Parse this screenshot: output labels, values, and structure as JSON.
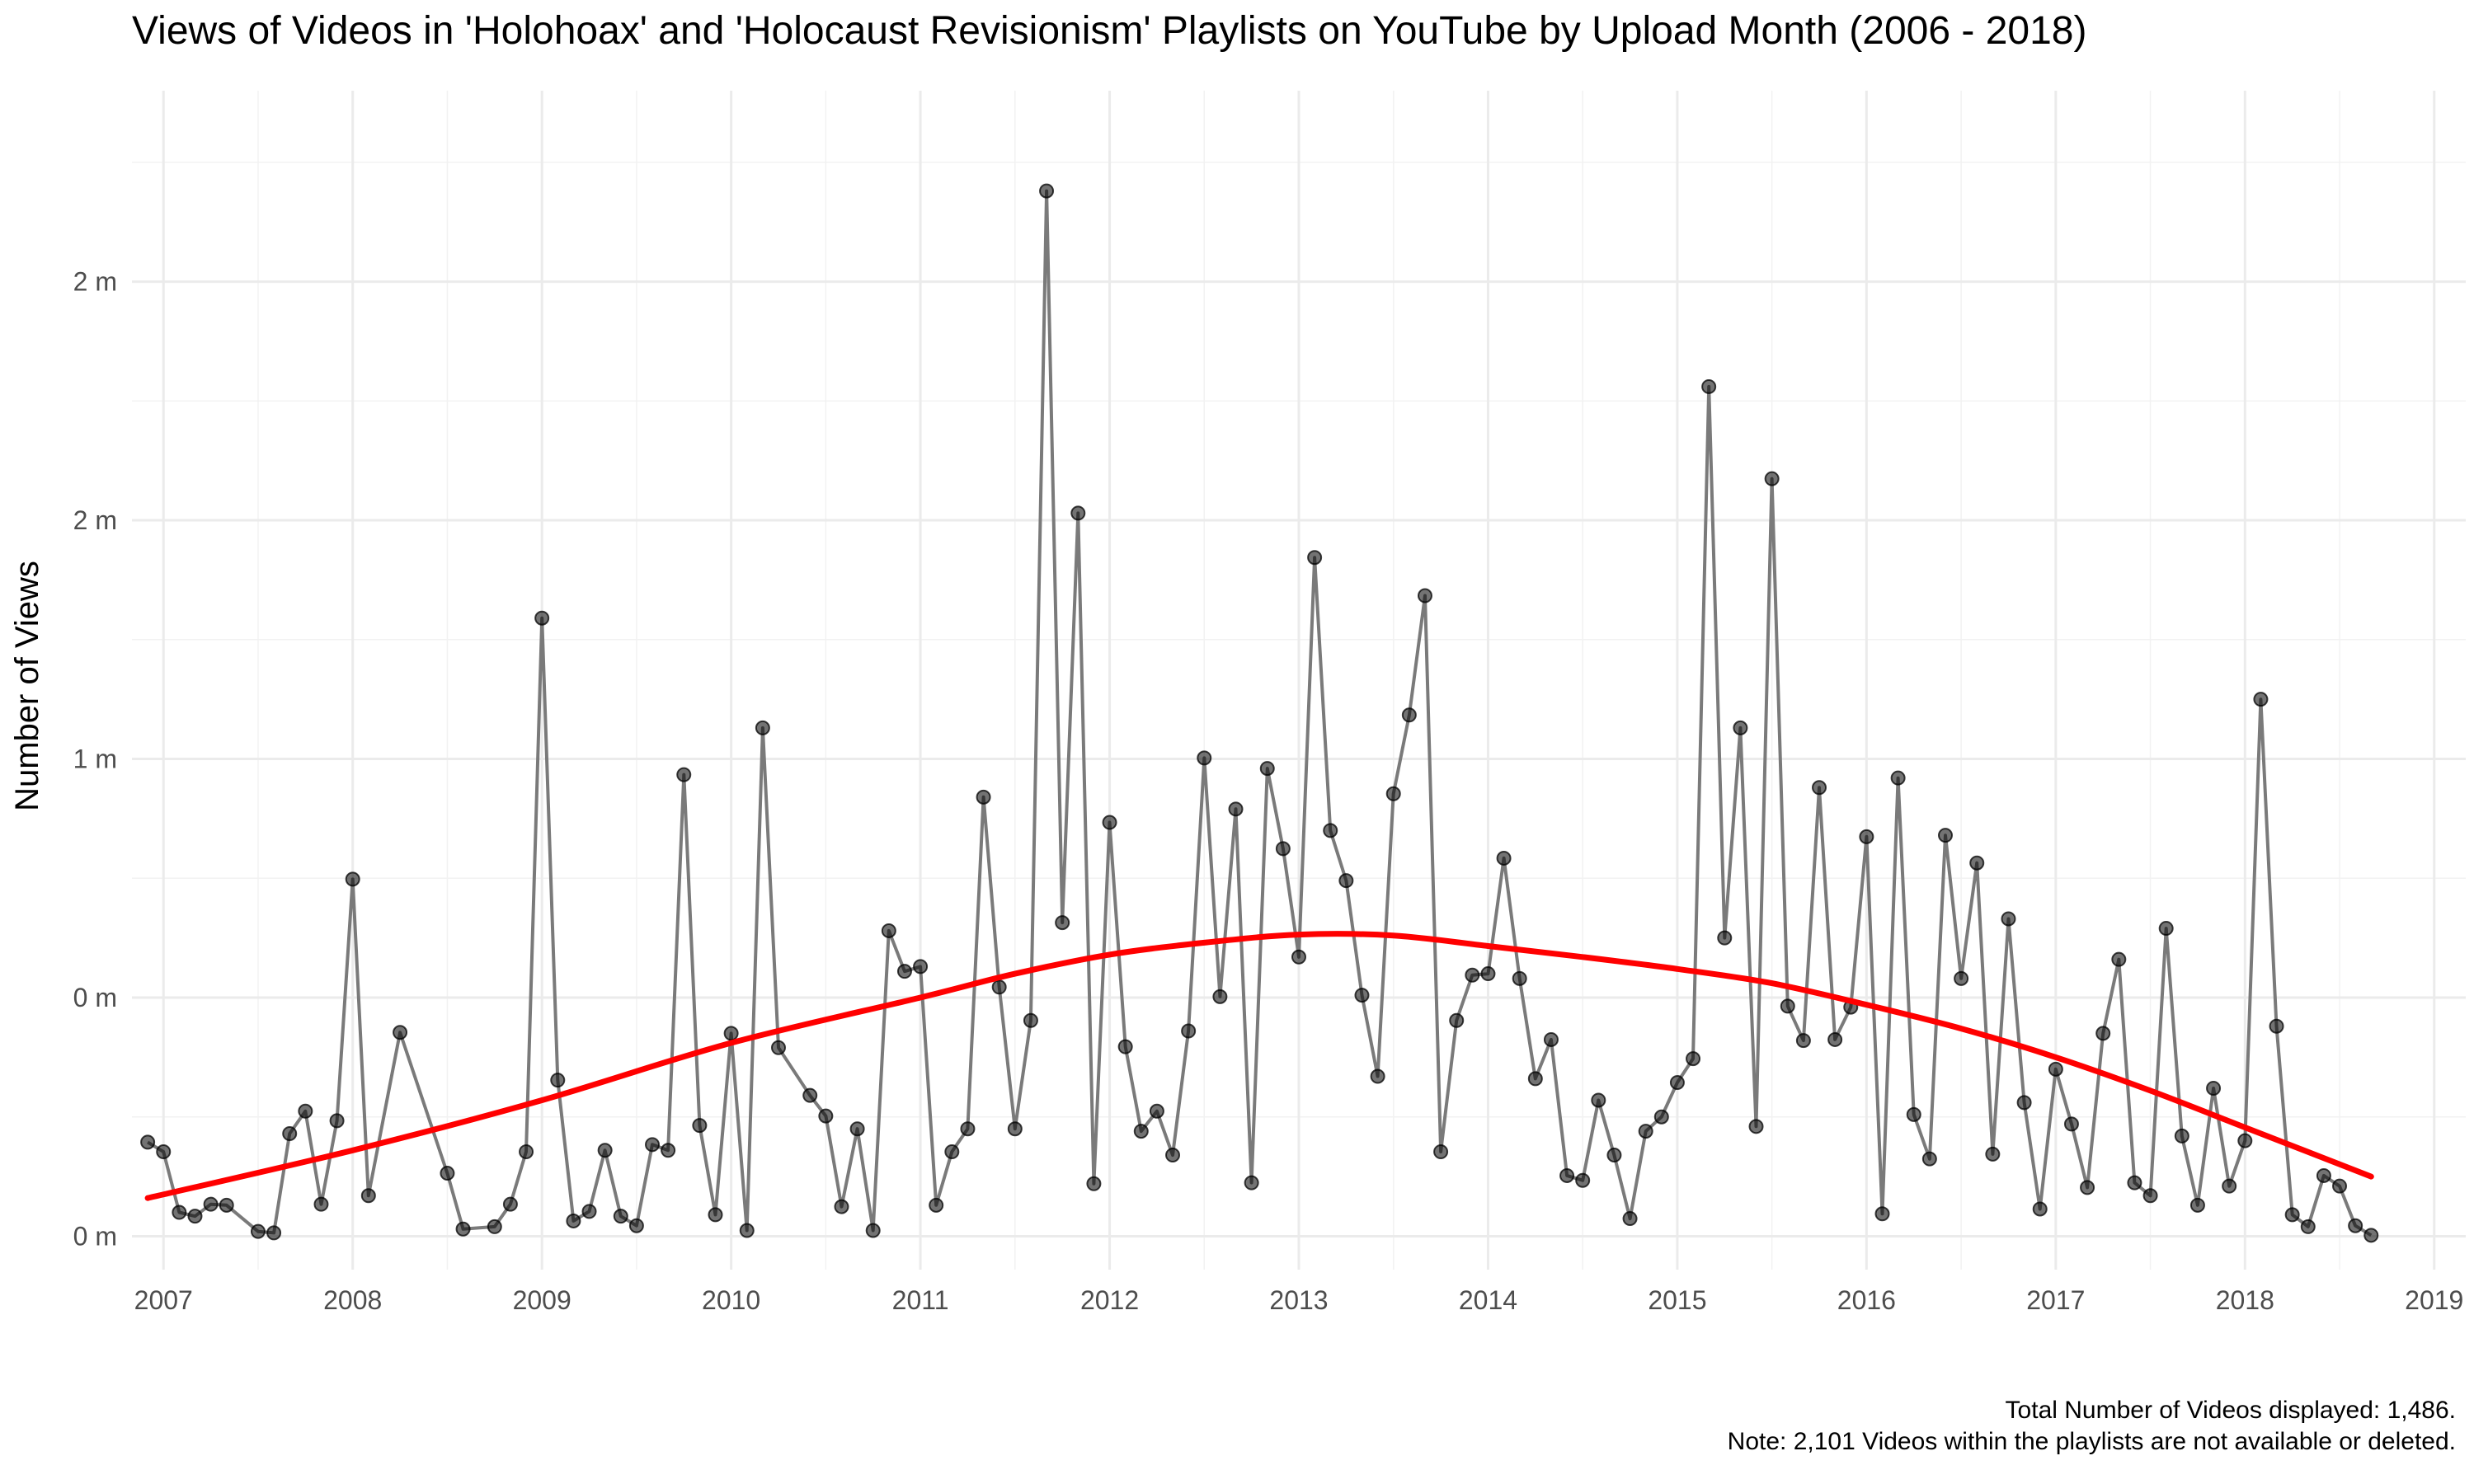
{
  "chart_data": {
    "type": "line",
    "title": "Views of Videos in 'Holohoax' and 'Holocaust Revisionism' Playlists on YouTube by Upload Month (2006 - 2018)",
    "xlabel": "",
    "ylabel": "Number of Views",
    "x_tick_labels": [
      "2007",
      "2008",
      "2009",
      "2010",
      "2011",
      "2012",
      "2013",
      "2014",
      "2015",
      "2016",
      "2017",
      "2018",
      "2019"
    ],
    "y_tick_labels": [
      "0 m",
      "0 m",
      "1 m",
      "2 m",
      "2 m"
    ],
    "y_tick_values": [
      0,
      500000,
      1000000,
      1500000,
      2000000
    ],
    "xlim": [
      "2006-11-01",
      "2019-03-01"
    ],
    "ylim": [
      -70000,
      2400000
    ],
    "grid": true,
    "legend": "none",
    "series": [
      {
        "style": "points-and-line",
        "color": "#000000",
        "line_color": "#7a7a7a",
        "points": [
          {
            "x": "2006-12",
            "y": 197000
          },
          {
            "x": "2007-01",
            "y": 177000
          },
          {
            "x": "2007-02",
            "y": 50000
          },
          {
            "x": "2007-03",
            "y": 42000
          },
          {
            "x": "2007-04",
            "y": 67000
          },
          {
            "x": "2007-05",
            "y": 65000
          },
          {
            "x": "2007-07",
            "y": 10000
          },
          {
            "x": "2007-08",
            "y": 7000
          },
          {
            "x": "2007-09",
            "y": 215000
          },
          {
            "x": "2007-10",
            "y": 262000
          },
          {
            "x": "2007-11",
            "y": 67000
          },
          {
            "x": "2007-12",
            "y": 242000
          },
          {
            "x": "2008-01",
            "y": 748000
          },
          {
            "x": "2008-02",
            "y": 85000
          },
          {
            "x": "2008-04",
            "y": 427000
          },
          {
            "x": "2008-07",
            "y": 132000
          },
          {
            "x": "2008-08",
            "y": 15000
          },
          {
            "x": "2008-10",
            "y": 20000
          },
          {
            "x": "2008-11",
            "y": 67000
          },
          {
            "x": "2008-12",
            "y": 177000
          },
          {
            "x": "2009-01",
            "y": 1295000
          },
          {
            "x": "2009-02",
            "y": 327000
          },
          {
            "x": "2009-03",
            "y": 32000
          },
          {
            "x": "2009-04",
            "y": 52000
          },
          {
            "x": "2009-05",
            "y": 180000
          },
          {
            "x": "2009-06",
            "y": 42000
          },
          {
            "x": "2009-07",
            "y": 22000
          },
          {
            "x": "2009-08",
            "y": 192000
          },
          {
            "x": "2009-09",
            "y": 180000
          },
          {
            "x": "2009-10",
            "y": 967000
          },
          {
            "x": "2009-11",
            "y": 232000
          },
          {
            "x": "2009-12",
            "y": 45000
          },
          {
            "x": "2010-01",
            "y": 425000
          },
          {
            "x": "2010-02",
            "y": 12000
          },
          {
            "x": "2010-03",
            "y": 1065000
          },
          {
            "x": "2010-04",
            "y": 395000
          },
          {
            "x": "2010-06",
            "y": 295000
          },
          {
            "x": "2010-07",
            "y": 252000
          },
          {
            "x": "2010-08",
            "y": 62000
          },
          {
            "x": "2010-09",
            "y": 225000
          },
          {
            "x": "2010-10",
            "y": 12000
          },
          {
            "x": "2010-11",
            "y": 640000
          },
          {
            "x": "2010-12",
            "y": 555000
          },
          {
            "x": "2011-01",
            "y": 565000
          },
          {
            "x": "2011-02",
            "y": 65000
          },
          {
            "x": "2011-03",
            "y": 177000
          },
          {
            "x": "2011-04",
            "y": 225000
          },
          {
            "x": "2011-05",
            "y": 920000
          },
          {
            "x": "2011-06",
            "y": 522000
          },
          {
            "x": "2011-07",
            "y": 225000
          },
          {
            "x": "2011-08",
            "y": 452000
          },
          {
            "x": "2011-09",
            "y": 2190000
          },
          {
            "x": "2011-10",
            "y": 657000
          },
          {
            "x": "2011-11",
            "y": 1515000
          },
          {
            "x": "2011-12",
            "y": 110000
          },
          {
            "x": "2012-01",
            "y": 867000
          },
          {
            "x": "2012-02",
            "y": 397000
          },
          {
            "x": "2012-03",
            "y": 220000
          },
          {
            "x": "2012-04",
            "y": 262000
          },
          {
            "x": "2012-05",
            "y": 170000
          },
          {
            "x": "2012-06",
            "y": 430000
          },
          {
            "x": "2012-07",
            "y": 1002000
          },
          {
            "x": "2012-08",
            "y": 502000
          },
          {
            "x": "2012-09",
            "y": 895000
          },
          {
            "x": "2012-10",
            "y": 112000
          },
          {
            "x": "2012-11",
            "y": 980000
          },
          {
            "x": "2012-12",
            "y": 812000
          },
          {
            "x": "2013-01",
            "y": 585000
          },
          {
            "x": "2013-02",
            "y": 1422000
          },
          {
            "x": "2013-03",
            "y": 850000
          },
          {
            "x": "2013-04",
            "y": 745000
          },
          {
            "x": "2013-05",
            "y": 505000
          },
          {
            "x": "2013-06",
            "y": 335000
          },
          {
            "x": "2013-07",
            "y": 927000
          },
          {
            "x": "2013-08",
            "y": 1092000
          },
          {
            "x": "2013-09",
            "y": 1342000
          },
          {
            "x": "2013-10",
            "y": 177000
          },
          {
            "x": "2013-11",
            "y": 452000
          },
          {
            "x": "2013-12",
            "y": 547000
          },
          {
            "x": "2014-01",
            "y": 550000
          },
          {
            "x": "2014-02",
            "y": 792000
          },
          {
            "x": "2014-03",
            "y": 540000
          },
          {
            "x": "2014-04",
            "y": 330000
          },
          {
            "x": "2014-05",
            "y": 412000
          },
          {
            "x": "2014-06",
            "y": 127000
          },
          {
            "x": "2014-07",
            "y": 117000
          },
          {
            "x": "2014-08",
            "y": 285000
          },
          {
            "x": "2014-09",
            "y": 170000
          },
          {
            "x": "2014-10",
            "y": 37000
          },
          {
            "x": "2014-11",
            "y": 220000
          },
          {
            "x": "2014-12",
            "y": 250000
          },
          {
            "x": "2015-01",
            "y": 322000
          },
          {
            "x": "2015-02",
            "y": 372000
          },
          {
            "x": "2015-03",
            "y": 1780000
          },
          {
            "x": "2015-04",
            "y": 625000
          },
          {
            "x": "2015-05",
            "y": 1065000
          },
          {
            "x": "2015-06",
            "y": 230000
          },
          {
            "x": "2015-07",
            "y": 1587000
          },
          {
            "x": "2015-08",
            "y": 482000
          },
          {
            "x": "2015-09",
            "y": 410000
          },
          {
            "x": "2015-10",
            "y": 940000
          },
          {
            "x": "2015-11",
            "y": 412000
          },
          {
            "x": "2015-12",
            "y": 480000
          },
          {
            "x": "2016-01",
            "y": 837000
          },
          {
            "x": "2016-02",
            "y": 47000
          },
          {
            "x": "2016-03",
            "y": 960000
          },
          {
            "x": "2016-04",
            "y": 255000
          },
          {
            "x": "2016-05",
            "y": 162000
          },
          {
            "x": "2016-06",
            "y": 840000
          },
          {
            "x": "2016-07",
            "y": 540000
          },
          {
            "x": "2016-08",
            "y": 782000
          },
          {
            "x": "2016-09",
            "y": 172000
          },
          {
            "x": "2016-10",
            "y": 665000
          },
          {
            "x": "2016-11",
            "y": 280000
          },
          {
            "x": "2016-12",
            "y": 57000
          },
          {
            "x": "2017-01",
            "y": 350000
          },
          {
            "x": "2017-02",
            "y": 235000
          },
          {
            "x": "2017-03",
            "y": 102000
          },
          {
            "x": "2017-04",
            "y": 425000
          },
          {
            "x": "2017-05",
            "y": 580000
          },
          {
            "x": "2017-06",
            "y": 112000
          },
          {
            "x": "2017-07",
            "y": 85000
          },
          {
            "x": "2017-08",
            "y": 645000
          },
          {
            "x": "2017-09",
            "y": 210000
          },
          {
            "x": "2017-10",
            "y": 65000
          },
          {
            "x": "2017-11",
            "y": 310000
          },
          {
            "x": "2017-12",
            "y": 105000
          },
          {
            "x": "2018-01",
            "y": 200000
          },
          {
            "x": "2018-02",
            "y": 1125000
          },
          {
            "x": "2018-03",
            "y": 440000
          },
          {
            "x": "2018-04",
            "y": 45000
          },
          {
            "x": "2018-05",
            "y": 20000
          },
          {
            "x": "2018-06",
            "y": 127000
          },
          {
            "x": "2018-07",
            "y": 105000
          },
          {
            "x": "2018-08",
            "y": 22000
          },
          {
            "x": "2018-09",
            "y": 2000
          }
        ]
      },
      {
        "style": "smooth-trend",
        "color": "#ff0000",
        "points": [
          {
            "x": "2006-12",
            "y": 80000
          },
          {
            "x": "2008-01",
            "y": 180000
          },
          {
            "x": "2009-01",
            "y": 285000
          },
          {
            "x": "2010-01",
            "y": 405000
          },
          {
            "x": "2011-01",
            "y": 500000
          },
          {
            "x": "2011-07",
            "y": 550000
          },
          {
            "x": "2012-01",
            "y": 590000
          },
          {
            "x": "2012-07",
            "y": 615000
          },
          {
            "x": "2013-01",
            "y": 632000
          },
          {
            "x": "2013-07",
            "y": 630000
          },
          {
            "x": "2014-01",
            "y": 608000
          },
          {
            "x": "2014-07",
            "y": 585000
          },
          {
            "x": "2015-01",
            "y": 560000
          },
          {
            "x": "2015-07",
            "y": 530000
          },
          {
            "x": "2016-01",
            "y": 485000
          },
          {
            "x": "2016-07",
            "y": 435000
          },
          {
            "x": "2017-01",
            "y": 375000
          },
          {
            "x": "2017-07",
            "y": 305000
          },
          {
            "x": "2018-01",
            "y": 228000
          },
          {
            "x": "2018-09",
            "y": 125000
          }
        ]
      }
    ]
  },
  "caption": {
    "line1": "Total Number of Videos displayed: 1,486.",
    "line2": "Note: 2,101 Videos within the playlists are not available or deleted."
  }
}
